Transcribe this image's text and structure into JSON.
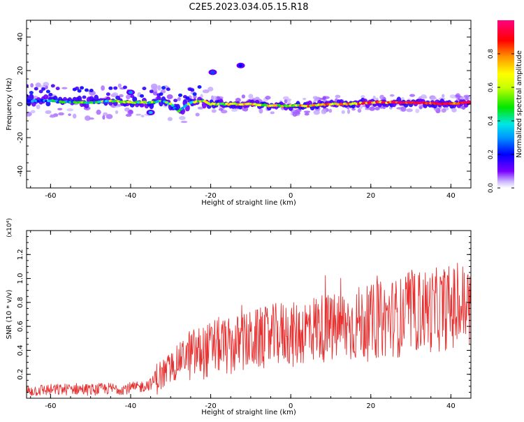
{
  "title": "C2E5.2023.034.05.15.R18",
  "chart_data": [
    {
      "type": "heatmap",
      "xlabel": "Height of straight line (km)",
      "ylabel": "Frequency (Hz)",
      "xlim": [
        -66,
        45
      ],
      "ylim": [
        -50,
        50
      ],
      "xticks": [
        -60,
        -40,
        -20,
        0,
        20,
        40
      ],
      "yticks": [
        -40,
        -20,
        0,
        20,
        40
      ],
      "colorbar": {
        "label": "Normalized spectral amplitude",
        "range": [
          0.0,
          1.0
        ],
        "ticks": [
          "0.0",
          "0.2",
          "0.4",
          "0.6",
          "0.8"
        ],
        "tick_values": [
          0.0,
          0.2,
          0.4,
          0.6,
          0.8
        ]
      },
      "ridge": {
        "frequency_hz": [
          2,
          2,
          1,
          1,
          2,
          1,
          1,
          2,
          0,
          -4,
          1,
          2,
          0,
          0,
          0,
          -1,
          -1,
          -1,
          0,
          0,
          1,
          1,
          0,
          1
        ],
        "x_km": [
          -65,
          -60,
          -55,
          -50,
          -45,
          -40,
          -35,
          -32,
          -30,
          -28,
          -25,
          -22,
          -20,
          -15,
          -10,
          -5,
          0,
          5,
          10,
          15,
          20,
          30,
          40,
          45
        ],
        "amplitude": [
          0.3,
          0.35,
          0.4,
          0.4,
          0.45,
          0.5,
          0.45,
          0.4,
          0.45,
          0.35,
          0.5,
          0.55,
          0.55,
          0.6,
          0.65,
          0.65,
          0.65,
          0.7,
          0.7,
          0.75,
          0.8,
          0.9,
          0.92,
          0.9
        ]
      },
      "blobs": [
        {
          "x": -19.5,
          "y": 19,
          "amplitude": 0.25
        },
        {
          "x": -12.5,
          "y": 23,
          "amplitude": 0.2
        },
        {
          "x": -40,
          "y": 7,
          "amplitude": 0.3
        },
        {
          "x": -35,
          "y": -5,
          "amplitude": 0.35
        }
      ],
      "grid": false
    },
    {
      "type": "line",
      "xlabel": "Height of straight line (km)",
      "ylabel": "SNR (10 * v/v)",
      "y_multiplier": "(x10⁴)",
      "xlim": [
        -66,
        45
      ],
      "ylim": [
        0,
        1.4
      ],
      "xticks": [
        -60,
        -40,
        -20,
        0,
        20,
        40
      ],
      "yticks": [
        0.2,
        0.4,
        0.6,
        0.8,
        1.0,
        1.2
      ],
      "series": [
        {
          "color": "#e83030",
          "x": [
            -66,
            -62,
            -58,
            -54,
            -50,
            -46,
            -42,
            -38,
            -35,
            -33,
            -31,
            -29,
            -27,
            -25,
            -23,
            -21,
            -19,
            -17,
            -15,
            -13,
            -11,
            -9,
            -7,
            -5,
            -3,
            -1,
            1,
            3,
            5,
            7,
            9,
            11,
            13,
            15,
            17,
            19,
            21,
            23,
            25,
            27,
            29,
            31,
            33,
            35,
            37,
            39,
            41,
            43,
            45
          ],
          "y": [
            0.06,
            0.07,
            0.07,
            0.08,
            0.07,
            0.08,
            0.08,
            0.09,
            0.12,
            0.18,
            0.22,
            0.28,
            0.35,
            0.36,
            0.38,
            0.39,
            0.44,
            0.44,
            0.42,
            0.46,
            0.47,
            0.49,
            0.5,
            0.51,
            0.54,
            0.55,
            0.52,
            0.56,
            0.58,
            0.6,
            0.58,
            0.58,
            0.61,
            0.6,
            0.63,
            0.62,
            0.64,
            0.66,
            0.68,
            0.67,
            0.7,
            0.72,
            0.74,
            0.73,
            0.74,
            0.76,
            0.75,
            0.77,
            0.78
          ]
        }
      ],
      "grid": false
    }
  ]
}
